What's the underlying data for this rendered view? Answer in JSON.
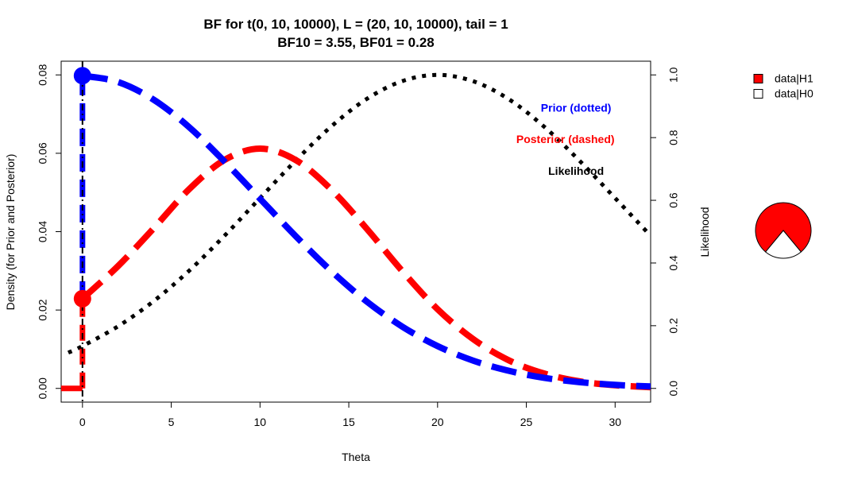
{
  "chart_data": {
    "type": "line",
    "title": "BF for t(0, 10, 10000), L = (20, 10, 10000), tail = 1",
    "subtitle": "BF10 = 3.55, BF01 = 0.28",
    "xlabel": "Theta",
    "ylabel": "Density (for Prior and Posterior)",
    "ylabel_right": "Likelihood",
    "xlim": [
      -1.2,
      32
    ],
    "ylim": [
      -0.0035,
      0.0835
    ],
    "ylim_right": [
      -0.04375,
      1.04375
    ],
    "x_ticks": [
      0,
      5,
      10,
      15,
      20,
      25,
      30
    ],
    "y_ticks": [
      0.0,
      0.02,
      0.04,
      0.06,
      0.08
    ],
    "y_tick_labels": [
      "0.00",
      "0.02",
      "0.04",
      "0.06",
      "0.08"
    ],
    "y_right_ticks": [
      0.0,
      0.2,
      0.4,
      0.6,
      0.8,
      1.0
    ],
    "y_right_tick_labels": [
      "0.0",
      "0.2",
      "0.4",
      "0.6",
      "0.8",
      "1.0"
    ],
    "series": [
      {
        "name": "Prior (dotted)",
        "color": "#0000ff",
        "axis": "left",
        "x": [
          0,
          2,
          4,
          6,
          8,
          10,
          12,
          14,
          16,
          18,
          20,
          22,
          24,
          26,
          28,
          30,
          32
        ],
        "y": [
          0.0798,
          0.0782,
          0.0737,
          0.0667,
          0.0579,
          0.0484,
          0.0389,
          0.03,
          0.0222,
          0.0158,
          0.0108,
          0.0071,
          0.0045,
          0.0027,
          0.0016,
          0.0009,
          0.0005
        ]
      },
      {
        "name": "Posterior (dashed)",
        "color": "#ff0000",
        "axis": "left",
        "x": [
          0,
          2,
          4,
          6,
          8,
          10,
          12,
          14,
          16,
          18,
          20,
          22,
          24,
          26,
          28,
          30,
          32
        ],
        "y": [
          0.0229,
          0.0312,
          0.0408,
          0.0508,
          0.0583,
          0.0612,
          0.0583,
          0.0508,
          0.0408,
          0.03,
          0.0202,
          0.0126,
          0.0072,
          0.0038,
          0.0018,
          0.0008,
          0.0003
        ]
      },
      {
        "name": "Likelihood",
        "color": "#000000",
        "axis": "right",
        "x": [
          -0.8,
          0,
          2,
          4,
          6,
          8,
          10,
          12,
          14,
          16,
          18,
          20,
          22,
          24,
          26,
          28,
          30,
          32
        ],
        "y": [
          0.114,
          0.135,
          0.198,
          0.278,
          0.375,
          0.487,
          0.607,
          0.726,
          0.835,
          0.923,
          0.98,
          1.0,
          0.98,
          0.923,
          0.835,
          0.726,
          0.607,
          0.487
        ]
      }
    ],
    "point_masses": {
      "x": 0,
      "prior_height": 0.0798,
      "posterior_height": 0.0229
    },
    "legend": {
      "placement": "top-right",
      "entries": [
        {
          "label": "data|H1",
          "color": "#ff0000"
        },
        {
          "label": "data|H0",
          "color": "#ffffff"
        }
      ]
    },
    "pie": {
      "type": "pie",
      "slices": [
        {
          "label": "data|H1",
          "value": 0.78,
          "color": "#ff0000"
        },
        {
          "label": "data|H0",
          "value": 0.22,
          "color": "#ffffff"
        }
      ]
    },
    "annotations": [
      {
        "text": "Prior (dotted)",
        "color": "#0000ff",
        "x": 27.8,
        "y": 0.0714
      },
      {
        "text": "Posterior (dashed)",
        "color": "#ff0000",
        "x": 27.2,
        "y": 0.0634
      },
      {
        "text": "Likelihood",
        "color": "#000000",
        "x": 27.8,
        "y": 0.0553
      }
    ]
  }
}
